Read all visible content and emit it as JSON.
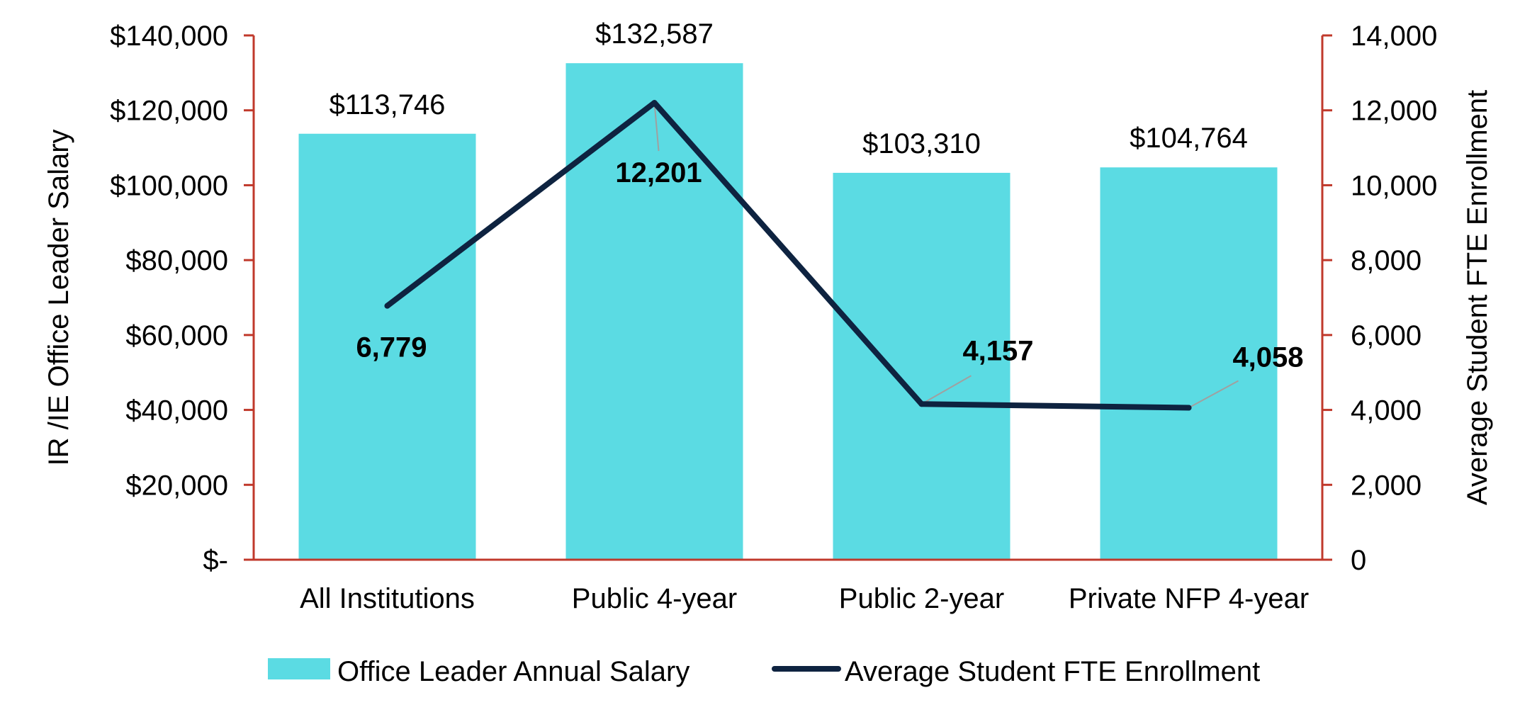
{
  "chart_data": {
    "type": "bar+line",
    "categories": [
      "All Institutions",
      "Public 4-year",
      "Public 2-year",
      "Private NFP 4-year"
    ],
    "series": [
      {
        "name": "Office Leader Annual Salary",
        "kind": "bar",
        "axis": "left",
        "values": [
          113746,
          132587,
          103310,
          104764
        ],
        "labels": [
          "$113,746",
          "$132,587",
          "$103,310",
          "$104,764"
        ]
      },
      {
        "name": "Average Student FTE Enrollment",
        "kind": "line",
        "axis": "right",
        "values": [
          6779,
          12201,
          4157,
          4058
        ],
        "labels": [
          "6,779",
          "12,201",
          "4,157",
          "4,058"
        ]
      }
    ],
    "y_left": {
      "title": "IR /IE Office Leader Salary",
      "ylim": [
        0,
        140000
      ],
      "tick_values": [
        0,
        20000,
        40000,
        60000,
        80000,
        100000,
        120000,
        140000
      ],
      "tick_labels": [
        "$-",
        "$20,000",
        "$40,000",
        "$60,000",
        "$80,000",
        "$100,000",
        "$120,000",
        "$140,000"
      ]
    },
    "y_right": {
      "title": "Average Student FTE Enrollment",
      "ylim": [
        0,
        14000
      ],
      "tick_values": [
        0,
        2000,
        4000,
        6000,
        8000,
        10000,
        12000,
        14000
      ],
      "tick_labels": [
        "0",
        "2,000",
        "4,000",
        "6,000",
        "8,000",
        "10,000",
        "12,000",
        "14,000"
      ]
    },
    "legend_position": "bottom",
    "grid": false
  },
  "colors": {
    "bar": "#5BDBE3",
    "line": "#0E2340",
    "axis": "#C0392B",
    "leader": "#A0A0A0"
  }
}
